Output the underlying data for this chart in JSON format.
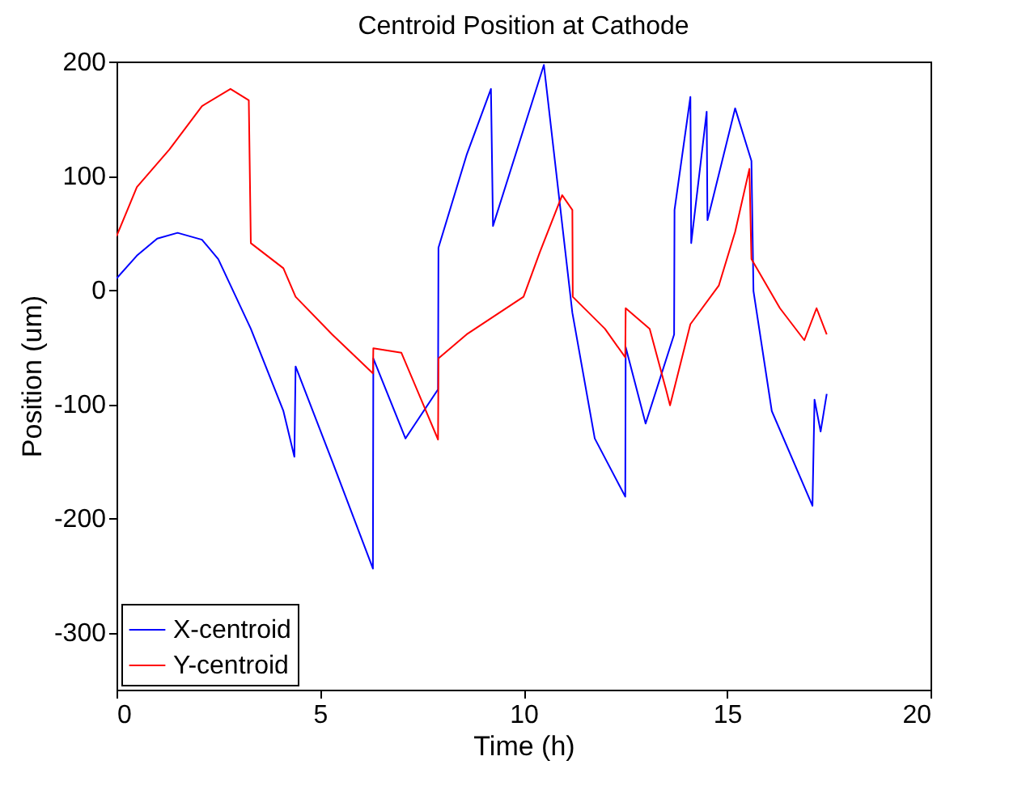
{
  "chart_data": {
    "type": "line",
    "title": "Centroid Position at Cathode",
    "xlabel": "Time (h)",
    "ylabel": "Position (um)",
    "xlim": [
      0,
      20
    ],
    "xticks": [
      0,
      5,
      10,
      15,
      20
    ],
    "ylim": [
      -350,
      200
    ],
    "yticks": [
      -300,
      -200,
      -100,
      0,
      100,
      200
    ],
    "grid": false,
    "legend": "bottom left",
    "series": [
      {
        "name": "X-centroid",
        "color": "#0000ff",
        "x": [
          0,
          0.5,
          1,
          1.5,
          2.1,
          2.5,
          3.3,
          4.1,
          4.37,
          4.4,
          5.3,
          6.3,
          6.31,
          7.1,
          7.9,
          7.91,
          8.6,
          9.2,
          9.25,
          10.5,
          11.2,
          11.75,
          12.5,
          12.51,
          13.0,
          13.7,
          13.71,
          14.1,
          14.12,
          14.5,
          14.52,
          15.2,
          15.6,
          15.65,
          16.1,
          17.1,
          17.15,
          17.3,
          17.45
        ],
        "values": [
          10,
          30,
          45,
          50,
          44,
          27,
          -34,
          -106,
          -146,
          -67,
          -150,
          -244,
          -60,
          -130,
          -87,
          37,
          118,
          176,
          56,
          197,
          -20,
          -130,
          -181,
          -50,
          -117,
          -39,
          70,
          169,
          41,
          156,
          61,
          159,
          113,
          -1,
          -106,
          -189,
          -96,
          -124,
          -91
        ]
      },
      {
        "name": "Y-centroid",
        "color": "#ff0000",
        "x": [
          0,
          0.5,
          1.3,
          2.1,
          2.8,
          3.25,
          3.3,
          4.1,
          4.4,
          5.3,
          6.3,
          6.31,
          7.0,
          7.9,
          7.91,
          8.6,
          10.0,
          10.4,
          10.95,
          11.2,
          11.21,
          12.0,
          12.5,
          12.51,
          13.1,
          13.5,
          13.6,
          14.1,
          14.8,
          15.2,
          15.55,
          15.6,
          16.3,
          16.9,
          17.2,
          17.45
        ],
        "values": [
          47,
          90,
          123,
          161,
          176,
          166,
          41,
          19,
          -6,
          -39,
          -73,
          -51,
          -55,
          -131,
          -60,
          -39,
          -6,
          33,
          83,
          70,
          -6,
          -34,
          -59,
          -16,
          -34,
          -87,
          -101,
          -30,
          4,
          51,
          106,
          27,
          -16,
          -44,
          -16,
          -39
        ]
      }
    ]
  }
}
